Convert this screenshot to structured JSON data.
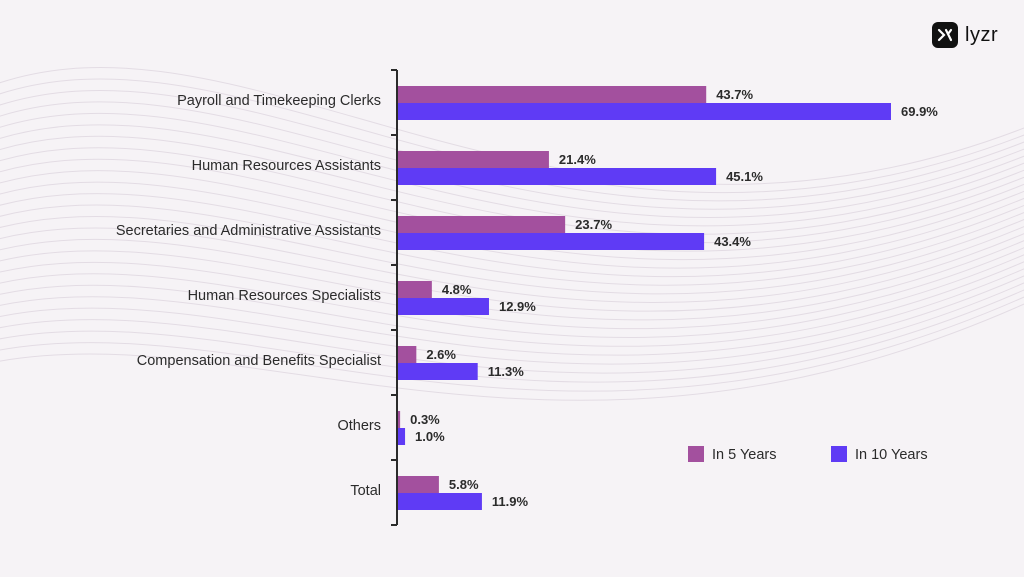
{
  "brand": {
    "name": "lyzr"
  },
  "colors": {
    "in5": "#a3509e",
    "in10": "#5f3bf5",
    "axis": "#2b2b2b",
    "text": "#2b2b2b",
    "background": "#f6f3f6"
  },
  "chart_data": {
    "type": "bar",
    "orientation": "horizontal",
    "categories": [
      "Payroll and Timekeeping Clerks",
      "Human Resources Assistants",
      "Secretaries and Administrative Assistants",
      "Human Resources Specialists",
      "Compensation and Benefits Specialist",
      "Others",
      "Total"
    ],
    "series": [
      {
        "name": "In 5 Years",
        "values": [
          43.7,
          21.4,
          23.7,
          4.8,
          2.6,
          0.3,
          5.8
        ],
        "labels": [
          "43.7%",
          "21.4%",
          "23.7%",
          "4.8%",
          "2.6%",
          "0.3%",
          "5.8%"
        ]
      },
      {
        "name": "In 10 Years",
        "values": [
          69.9,
          45.1,
          43.4,
          12.9,
          11.3,
          1.0,
          11.9
        ],
        "labels": [
          "69.9%",
          "45.1%",
          "43.4%",
          "12.9%",
          "11.3%",
          "1.0%",
          "11.9%"
        ]
      }
    ],
    "xlim": [
      0,
      69.9
    ],
    "grid": false,
    "legend_position": "bottom-right"
  }
}
